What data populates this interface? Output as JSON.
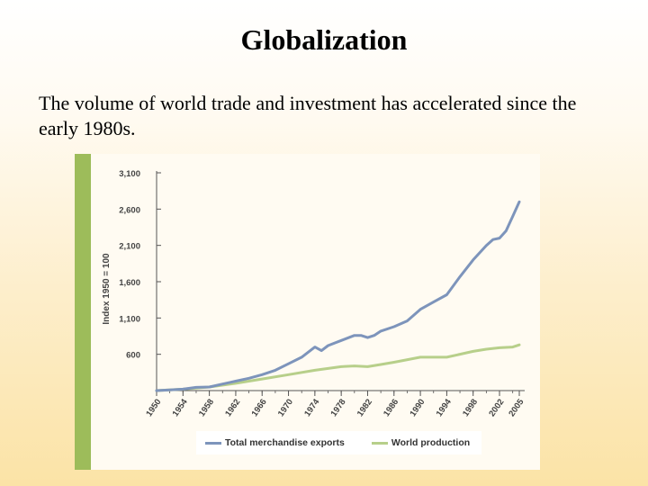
{
  "slide": {
    "title": "Globalization",
    "text": "The volume of world trade and investment has accelerated since the early 1980s."
  },
  "colors": {
    "exports": "#7d94bb",
    "production": "#b7cf8a",
    "axis": "#555555",
    "accent_bar": "#9dbc5a"
  },
  "chart_data": {
    "type": "line",
    "title": "",
    "xlabel": "",
    "ylabel": "Index 1950 = 100",
    "ylim": [
      100,
      3100
    ],
    "xlim": [
      1950,
      2005
    ],
    "yticks": [
      600,
      1100,
      1600,
      2100,
      2600,
      3100
    ],
    "ytick_labels": [
      "600",
      "1,100",
      "1,600",
      "2,100",
      "2,600",
      "3,100"
    ],
    "xticks": [
      1950,
      1954,
      1958,
      1962,
      1966,
      1970,
      1974,
      1978,
      1982,
      1986,
      1990,
      1994,
      1998,
      2002,
      2005
    ],
    "xtick_labels": [
      "1950",
      "1954",
      "1958",
      "1962",
      "1966",
      "1970",
      "1974",
      "1978",
      "1982",
      "1986",
      "1990",
      "1994",
      "1998",
      "2002",
      "2005"
    ],
    "legend": "bottom",
    "series": [
      {
        "name": "Total merchandise exports",
        "x": [
          1950,
          1952,
          1954,
          1956,
          1958,
          1960,
          1962,
          1964,
          1966,
          1968,
          1970,
          1972,
          1974,
          1975,
          1976,
          1978,
          1980,
          1981,
          1982,
          1983,
          1984,
          1986,
          1988,
          1990,
          1992,
          1994,
          1996,
          1998,
          2000,
          2001,
          2002,
          2003,
          2004,
          2005
        ],
        "y": [
          100,
          110,
          120,
          145,
          150,
          190,
          230,
          270,
          320,
          380,
          470,
          560,
          700,
          650,
          720,
          790,
          860,
          860,
          830,
          860,
          920,
          980,
          1060,
          1220,
          1320,
          1420,
          1670,
          1900,
          2100,
          2180,
          2200,
          2300,
          2500,
          2700
        ]
      },
      {
        "name": "World production",
        "x": [
          1950,
          1954,
          1958,
          1962,
          1966,
          1970,
          1974,
          1978,
          1980,
          1982,
          1984,
          1986,
          1990,
          1994,
          1998,
          2000,
          2002,
          2004,
          2005
        ],
        "y": [
          100,
          120,
          150,
          200,
          260,
          320,
          380,
          430,
          440,
          430,
          460,
          490,
          560,
          560,
          640,
          670,
          690,
          700,
          730
        ]
      }
    ]
  }
}
